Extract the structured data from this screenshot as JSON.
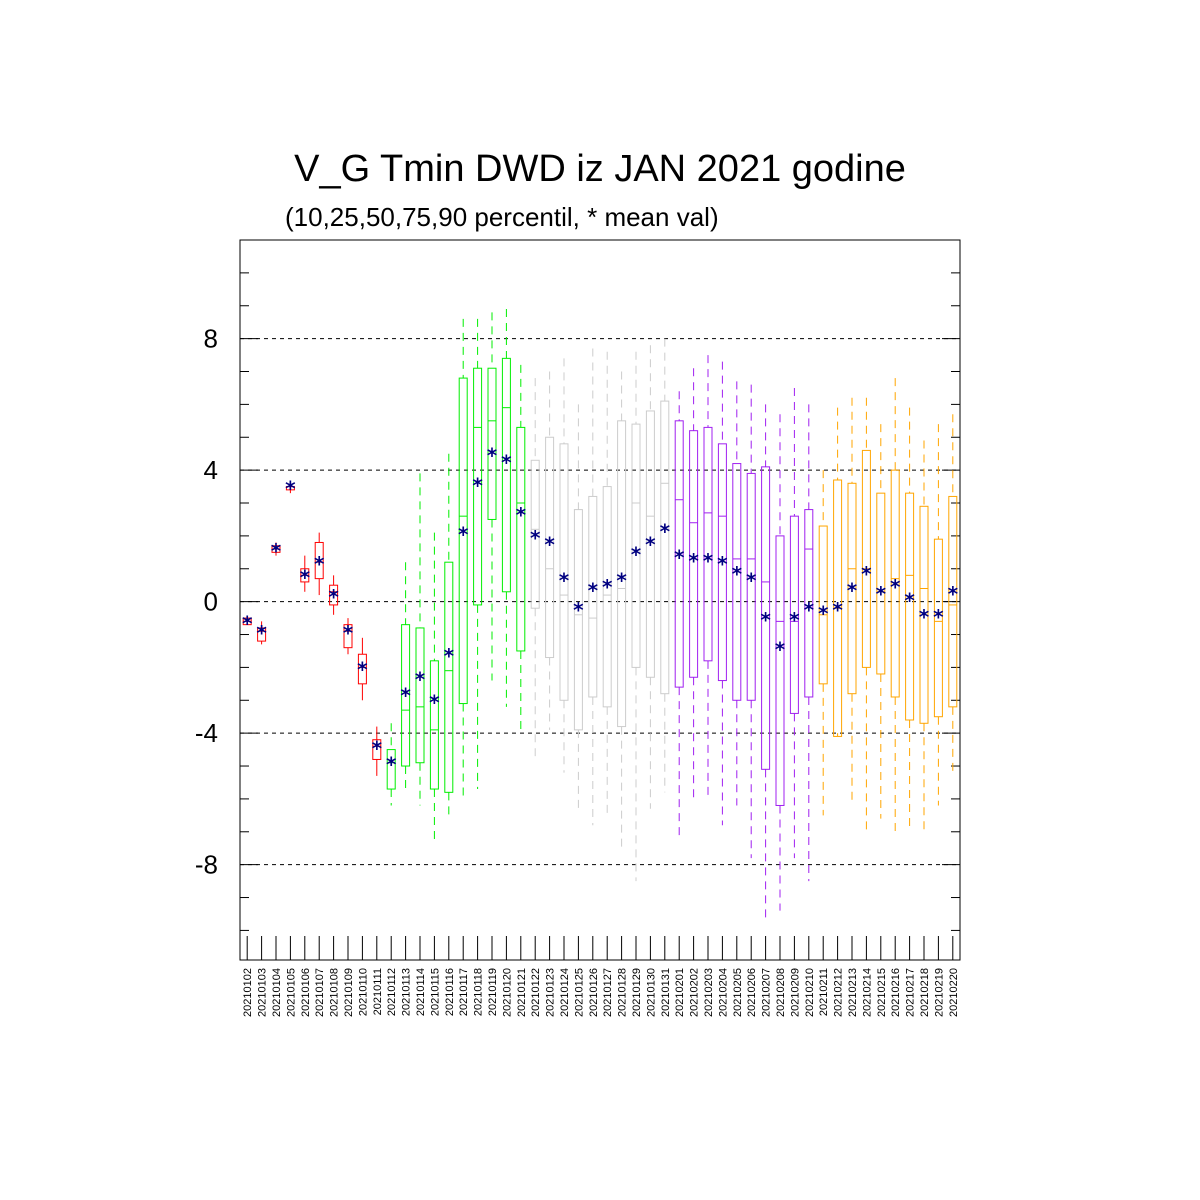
{
  "chart_data": {
    "type": "box",
    "title": "V_G Tmin DWD iz JAN 2021 godine",
    "subtitle": "(10,25,50,75,90 percentil, * mean val)",
    "xlabel": "",
    "ylabel": "",
    "ylim": [
      -10.9,
      11.0
    ],
    "yticks": [
      -8,
      -4,
      0,
      4,
      8
    ],
    "grid": "dashed horizontal at major ticks",
    "mean_marker": "*",
    "mean_color": "#000080",
    "categories": [
      "20210102",
      "20210103",
      "20210104",
      "20210105",
      "20210106",
      "20210107",
      "20210108",
      "20210109",
      "20210110",
      "20210111",
      "20210112",
      "20210113",
      "20210114",
      "20210115",
      "20210116",
      "20210117",
      "20210118",
      "20210119",
      "20210120",
      "20210121",
      "20210122",
      "20210123",
      "20210124",
      "20210125",
      "20210126",
      "20210127",
      "20210128",
      "20210129",
      "20210130",
      "20210131",
      "20210201",
      "20210202",
      "20210203",
      "20210204",
      "20210205",
      "20210206",
      "20210207",
      "20210208",
      "20210209",
      "20210210",
      "20210211",
      "20210212",
      "20210213",
      "20210214",
      "20210215",
      "20210216",
      "20210217",
      "20210218",
      "20210219",
      "20210220"
    ],
    "colors": {
      "red": "#ff0000",
      "green": "#00ee00",
      "gray": "#cccccc",
      "purple": "#a020f0",
      "orange": "#ffa500"
    },
    "boxes": [
      {
        "date": "20210102",
        "p10": -0.7,
        "p25": -0.7,
        "p50": -0.6,
        "p75": -0.5,
        "p90": -0.5,
        "mean": -0.6,
        "color": "red"
      },
      {
        "date": "20210103",
        "p10": -1.3,
        "p25": -1.2,
        "p50": -0.9,
        "p75": -0.8,
        "p90": -0.6,
        "mean": -0.9,
        "color": "red"
      },
      {
        "date": "20210104",
        "p10": 1.4,
        "p25": 1.5,
        "p50": 1.6,
        "p75": 1.7,
        "p90": 1.8,
        "mean": 1.6,
        "color": "red"
      },
      {
        "date": "20210105",
        "p10": 3.3,
        "p25": 3.4,
        "p50": 3.5,
        "p75": 3.5,
        "p90": 3.6,
        "mean": 3.5,
        "color": "red"
      },
      {
        "date": "20210106",
        "p10": 0.3,
        "p25": 0.6,
        "p50": 0.8,
        "p75": 1.0,
        "p90": 1.4,
        "mean": 0.8,
        "color": "red"
      },
      {
        "date": "20210107",
        "p10": 0.2,
        "p25": 0.7,
        "p50": 1.2,
        "p75": 1.8,
        "p90": 2.1,
        "mean": 1.2,
        "color": "red"
      },
      {
        "date": "20210108",
        "p10": -0.4,
        "p25": -0.1,
        "p50": 0.3,
        "p75": 0.5,
        "p90": 0.8,
        "mean": 0.2,
        "color": "red"
      },
      {
        "date": "20210109",
        "p10": -1.6,
        "p25": -1.4,
        "p50": -0.9,
        "p75": -0.7,
        "p90": -0.5,
        "mean": -0.9,
        "color": "red"
      },
      {
        "date": "20210110",
        "p10": -3.0,
        "p25": -2.5,
        "p50": -2.0,
        "p75": -1.6,
        "p90": -1.1,
        "mean": -2.0,
        "color": "red"
      },
      {
        "date": "20210111",
        "p10": -5.3,
        "p25": -4.8,
        "p50": -4.4,
        "p75": -4.2,
        "p90": -3.8,
        "mean": -4.4,
        "color": "red"
      },
      {
        "date": "20210112",
        "p10": -6.2,
        "p25": -5.7,
        "p50": -4.9,
        "p75": -4.5,
        "p90": -3.7,
        "mean": -4.9,
        "color": "green"
      },
      {
        "date": "20210113",
        "p10": -5.8,
        "p25": -5.0,
        "p50": -3.3,
        "p75": -0.7,
        "p90": 1.2,
        "mean": -2.8,
        "color": "green"
      },
      {
        "date": "20210114",
        "p10": -6.2,
        "p25": -4.9,
        "p50": -3.2,
        "p75": -0.8,
        "p90": 3.9,
        "mean": -2.3,
        "color": "green"
      },
      {
        "date": "20210115",
        "p10": -7.3,
        "p25": -5.7,
        "p50": -3.9,
        "p75": -1.8,
        "p90": 2.1,
        "mean": -3.0,
        "color": "green"
      },
      {
        "date": "20210116",
        "p10": -6.5,
        "p25": -5.8,
        "p50": -2.1,
        "p75": 1.2,
        "p90": 4.5,
        "mean": -1.6,
        "color": "green"
      },
      {
        "date": "20210117",
        "p10": -5.9,
        "p25": -3.1,
        "p50": 2.6,
        "p75": 6.8,
        "p90": 8.6,
        "mean": 2.1,
        "color": "green"
      },
      {
        "date": "20210118",
        "p10": -5.7,
        "p25": -0.1,
        "p50": 5.3,
        "p75": 7.1,
        "p90": 8.6,
        "mean": 3.6,
        "color": "green"
      },
      {
        "date": "20210119",
        "p10": -2.4,
        "p25": 2.5,
        "p50": 5.5,
        "p75": 7.1,
        "p90": 8.8,
        "mean": 4.5,
        "color": "green"
      },
      {
        "date": "20210120",
        "p10": -3.2,
        "p25": 0.3,
        "p50": 5.9,
        "p75": 7.4,
        "p90": 8.9,
        "mean": 4.3,
        "color": "green"
      },
      {
        "date": "20210121",
        "p10": -3.9,
        "p25": -1.5,
        "p50": 3.0,
        "p75": 5.3,
        "p90": 7.2,
        "mean": 2.7,
        "color": "green"
      },
      {
        "date": "20210122",
        "p10": -4.7,
        "p25": -0.2,
        "p50": 2.2,
        "p75": 4.3,
        "p90": 6.8,
        "mean": 2.0,
        "color": "gray"
      },
      {
        "date": "20210123",
        "p10": -3.9,
        "p25": -1.7,
        "p50": 1.0,
        "p75": 5.0,
        "p90": 7.0,
        "mean": 1.8,
        "color": "gray"
      },
      {
        "date": "20210124",
        "p10": -5.2,
        "p25": -3.0,
        "p50": 0.2,
        "p75": 4.8,
        "p90": 7.4,
        "mean": 0.7,
        "color": "gray"
      },
      {
        "date": "20210125",
        "p10": -6.4,
        "p25": -3.9,
        "p50": -0.4,
        "p75": 2.8,
        "p90": 6.0,
        "mean": -0.2,
        "color": "gray"
      },
      {
        "date": "20210126",
        "p10": -6.8,
        "p25": -2.9,
        "p50": -0.5,
        "p75": 3.2,
        "p90": 7.7,
        "mean": 0.4,
        "color": "gray"
      },
      {
        "date": "20210127",
        "p10": -6.6,
        "p25": -3.2,
        "p50": 0.2,
        "p75": 3.5,
        "p90": 7.6,
        "mean": 0.5,
        "color": "gray"
      },
      {
        "date": "20210128",
        "p10": -7.5,
        "p25": -3.8,
        "p50": 0.4,
        "p75": 5.5,
        "p90": 7.0,
        "mean": 0.7,
        "color": "gray"
      },
      {
        "date": "20210129",
        "p10": -8.5,
        "p25": -2.0,
        "p50": 3.0,
        "p75": 5.4,
        "p90": 7.6,
        "mean": 1.5,
        "color": "gray"
      },
      {
        "date": "20210130",
        "p10": -6.3,
        "p25": -2.3,
        "p50": 2.6,
        "p75": 5.8,
        "p90": 7.8,
        "mean": 1.8,
        "color": "gray"
      },
      {
        "date": "20210131",
        "p10": -5.8,
        "p25": -2.8,
        "p50": 3.6,
        "p75": 6.1,
        "p90": 8.0,
        "mean": 2.2,
        "color": "gray"
      },
      {
        "date": "20210201",
        "p10": -7.1,
        "p25": -2.6,
        "p50": 3.1,
        "p75": 5.5,
        "p90": 6.4,
        "mean": 1.4,
        "color": "purple"
      },
      {
        "date": "20210202",
        "p10": -6.1,
        "p25": -2.3,
        "p50": 2.4,
        "p75": 5.2,
        "p90": 7.1,
        "mean": 1.3,
        "color": "purple"
      },
      {
        "date": "20210203",
        "p10": -6.0,
        "p25": -1.8,
        "p50": 2.7,
        "p75": 5.3,
        "p90": 7.5,
        "mean": 1.3,
        "color": "purple"
      },
      {
        "date": "20210204",
        "p10": -6.8,
        "p25": -2.4,
        "p50": 2.6,
        "p75": 4.8,
        "p90": 7.3,
        "mean": 1.2,
        "color": "purple"
      },
      {
        "date": "20210205",
        "p10": -6.2,
        "p25": -3.0,
        "p50": 1.3,
        "p75": 4.2,
        "p90": 6.7,
        "mean": 0.9,
        "color": "purple"
      },
      {
        "date": "20210206",
        "p10": -7.8,
        "p25": -3.0,
        "p50": 1.3,
        "p75": 3.9,
        "p90": 6.6,
        "mean": 0.7,
        "color": "purple"
      },
      {
        "date": "20210207",
        "p10": -9.7,
        "p25": -5.1,
        "p50": 0.6,
        "p75": 4.1,
        "p90": 6.0,
        "mean": -0.5,
        "color": "purple"
      },
      {
        "date": "20210208",
        "p10": -9.4,
        "p25": -6.2,
        "p50": -0.6,
        "p75": 2.0,
        "p90": 5.7,
        "mean": -1.4,
        "color": "purple"
      },
      {
        "date": "20210209",
        "p10": -7.8,
        "p25": -3.4,
        "p50": -0.6,
        "p75": 2.6,
        "p90": 6.5,
        "mean": -0.5,
        "color": "purple"
      },
      {
        "date": "20210210",
        "p10": -8.5,
        "p25": -2.9,
        "p50": 1.6,
        "p75": 2.8,
        "p90": 6.0,
        "mean": -0.2,
        "color": "purple"
      },
      {
        "date": "20210211",
        "p10": -6.5,
        "p25": -2.5,
        "p50": -0.4,
        "p75": 2.3,
        "p90": 4.0,
        "mean": -0.3,
        "color": "orange"
      },
      {
        "date": "20210212",
        "p10": -4.0,
        "p25": -4.1,
        "p50": -0.2,
        "p75": 3.7,
        "p90": 5.9,
        "mean": -0.2,
        "color": "orange"
      },
      {
        "date": "20210213",
        "p10": -6.1,
        "p25": -2.8,
        "p50": 1.0,
        "p75": 3.6,
        "p90": 6.2,
        "mean": 0.4,
        "color": "orange"
      },
      {
        "date": "20210214",
        "p10": -7.0,
        "p25": -2.0,
        "p50": 1.0,
        "p75": 4.6,
        "p90": 6.2,
        "mean": 0.9,
        "color": "orange"
      },
      {
        "date": "20210215",
        "p10": -6.6,
        "p25": -2.2,
        "p50": 0.3,
        "p75": 3.3,
        "p90": 5.4,
        "mean": 0.3,
        "color": "orange"
      },
      {
        "date": "20210216",
        "p10": -7.1,
        "p25": -2.9,
        "p50": 0.7,
        "p75": 4.0,
        "p90": 6.8,
        "mean": 0.5,
        "color": "orange"
      },
      {
        "date": "20210217",
        "p10": -6.9,
        "p25": -3.6,
        "p50": 0.8,
        "p75": 3.3,
        "p90": 5.9,
        "mean": 0.1,
        "color": "orange"
      },
      {
        "date": "20210218",
        "p10": -7.0,
        "p25": -3.7,
        "p50": 0.4,
        "p75": 2.9,
        "p90": 4.9,
        "mean": -0.4,
        "color": "orange"
      },
      {
        "date": "20210219",
        "p10": -6.2,
        "p25": -3.5,
        "p50": -0.6,
        "p75": 1.9,
        "p90": 5.4,
        "mean": -0.4,
        "color": "orange"
      },
      {
        "date": "20210220",
        "p10": -5.2,
        "p25": -3.2,
        "p50": -0.1,
        "p75": 3.2,
        "p90": 5.7,
        "mean": 0.3,
        "color": "orange"
      }
    ]
  }
}
